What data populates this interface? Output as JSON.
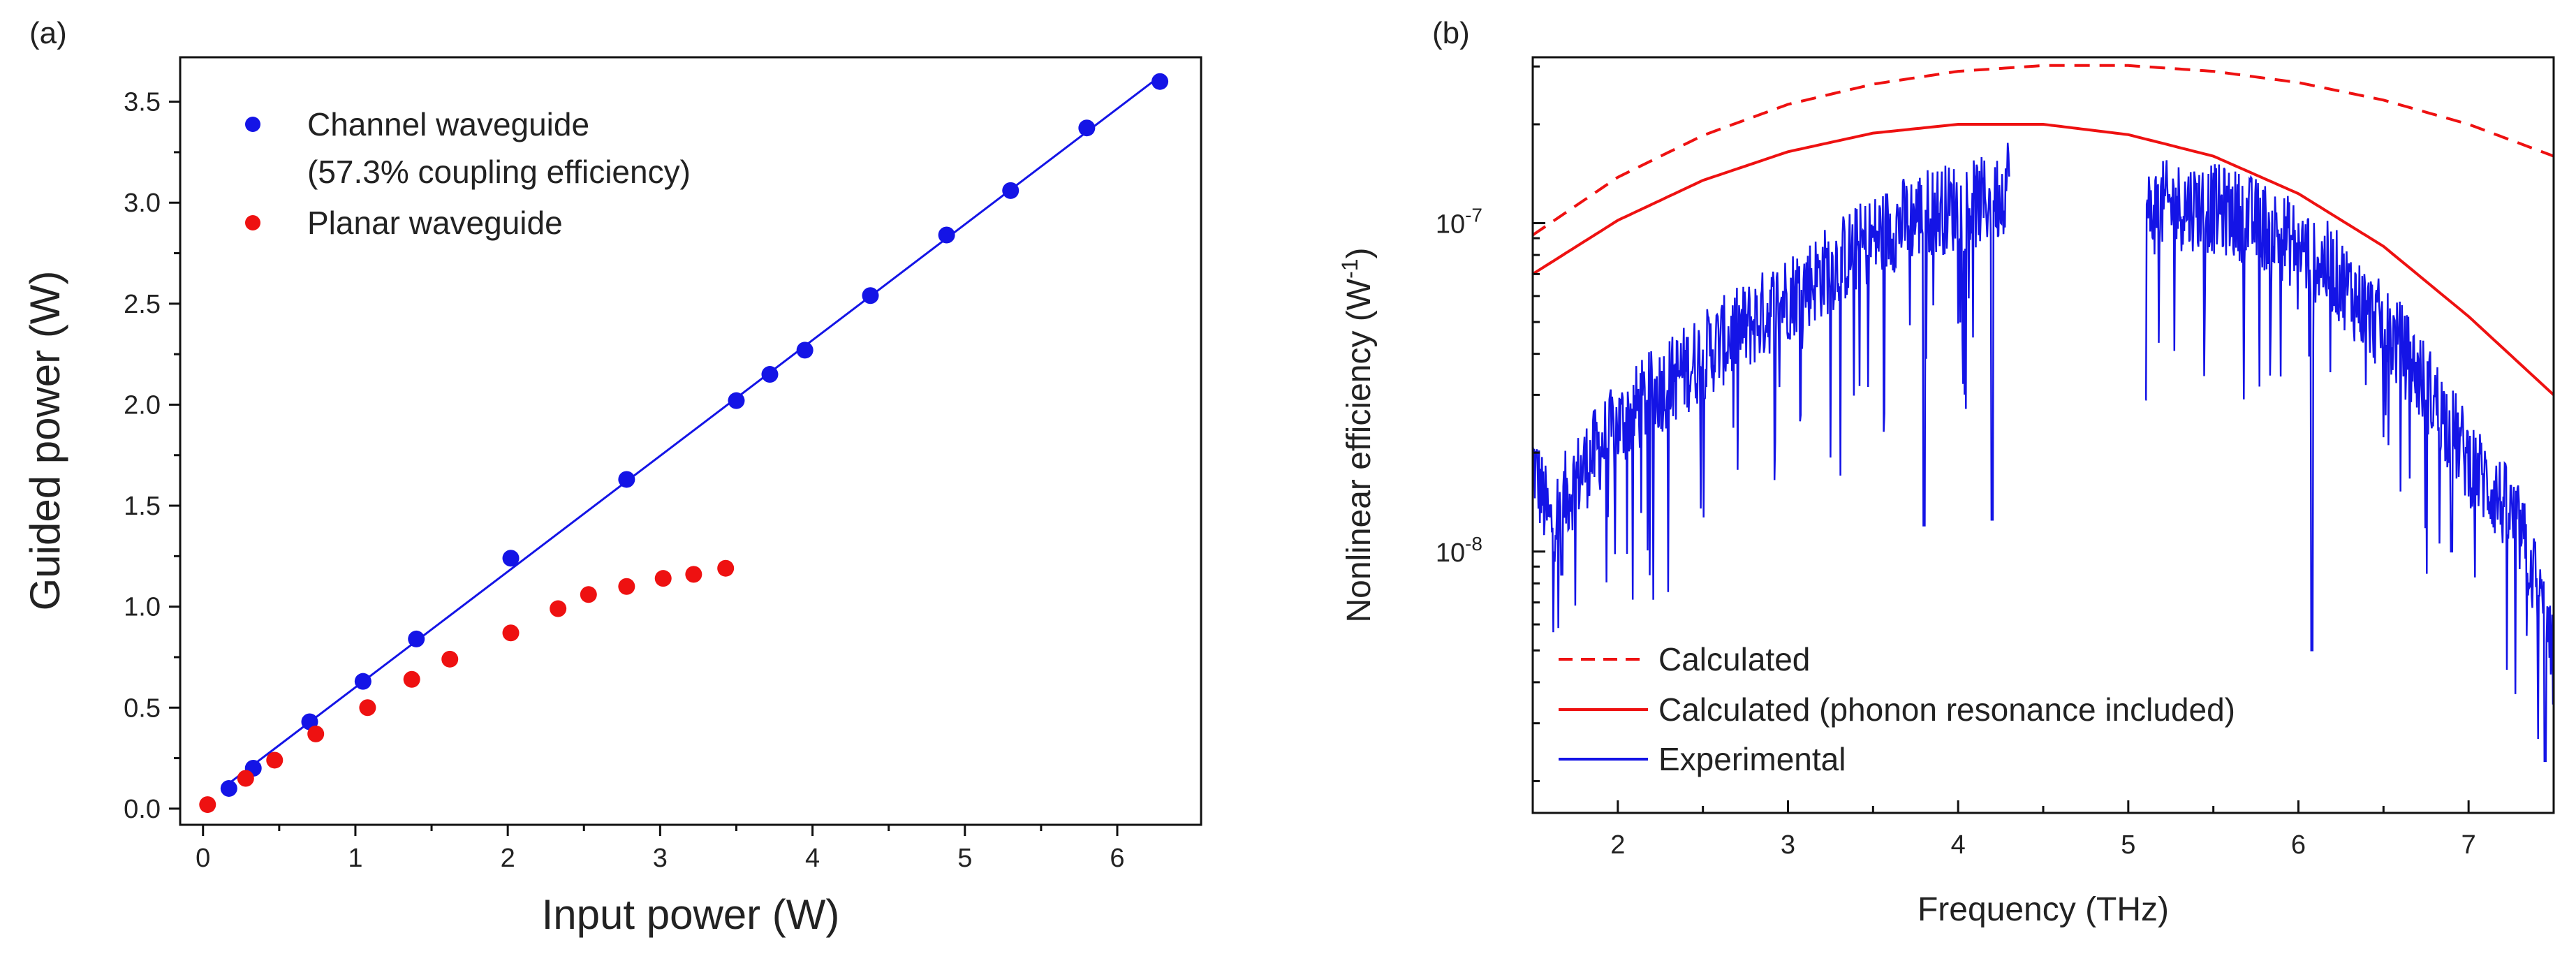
{
  "chart_data": [
    {
      "panel": "(a)",
      "type": "scatter",
      "xlabel": "Input power (W)",
      "ylabel": "Guided power (W)",
      "xlim": [
        -0.15,
        6.55
      ],
      "ylim": [
        -0.08,
        3.72
      ],
      "x_ticks": [
        0,
        1,
        2,
        3,
        4,
        5,
        6
      ],
      "y_ticks": [
        0.0,
        0.5,
        1.0,
        1.5,
        2.0,
        2.5,
        3.0,
        3.5
      ],
      "series": [
        {
          "name": "Channel waveguide",
          "name_line2": "(57.3% coupling efficiency)",
          "color": "#1414e6",
          "marker": "circle",
          "fit_line": true,
          "x": [
            0.17,
            0.33,
            0.7,
            1.05,
            1.4,
            2.02,
            2.78,
            3.5,
            3.72,
            3.95,
            4.38,
            4.88,
            5.3,
            5.8,
            6.28
          ],
          "y": [
            0.1,
            0.2,
            0.43,
            0.63,
            0.84,
            1.24,
            1.63,
            2.02,
            2.15,
            2.27,
            2.54,
            2.84,
            3.06,
            3.37,
            3.6
          ]
        },
        {
          "name": "Planar waveguide",
          "color": "#ee1111",
          "marker": "circle",
          "x": [
            0.03,
            0.28,
            0.47,
            0.74,
            1.08,
            1.37,
            1.62,
            2.02,
            2.33,
            2.53,
            2.78,
            3.02,
            3.22,
            3.43
          ],
          "y": [
            0.02,
            0.15,
            0.24,
            0.37,
            0.5,
            0.64,
            0.74,
            0.87,
            0.99,
            1.06,
            1.1,
            1.14,
            1.16,
            1.19
          ]
        }
      ]
    },
    {
      "panel": "(b)",
      "type": "line",
      "yscale": "log",
      "xlabel": "Frequency (THz)",
      "ylabel": "Nonlinear efficiency (W",
      "ylabel_sup": "-1",
      "ylabel_end": ")",
      "xlim": [
        1.5,
        7.5
      ],
      "ylim": [
        1.6e-09,
        3.2e-07
      ],
      "x_ticks": [
        2,
        3,
        4,
        5,
        6,
        7
      ],
      "y_tick_labels": [
        {
          "value": 1e-07,
          "base": "10",
          "exp": "-7"
        },
        {
          "value": 1e-08,
          "base": "10",
          "exp": "-8"
        }
      ],
      "series": [
        {
          "name": "Calculated",
          "color": "#ee1111",
          "style": "dashed",
          "x": [
            1.5,
            2.0,
            2.5,
            3.0,
            3.5,
            4.0,
            4.5,
            5.0,
            5.5,
            6.0,
            6.5,
            7.0,
            7.5
          ],
          "y": [
            9.2e-08,
            1.38e-07,
            1.85e-07,
            2.3e-07,
            2.65e-07,
            2.9e-07,
            3.02e-07,
            3.02e-07,
            2.9e-07,
            2.68e-07,
            2.37e-07,
            2e-07,
            1.6e-07
          ]
        },
        {
          "name": "Calculated (phonon resonance included)",
          "color": "#ee1111",
          "style": "solid",
          "x": [
            1.5,
            2.0,
            2.5,
            3.0,
            3.5,
            4.0,
            4.5,
            5.0,
            5.5,
            6.0,
            6.5,
            7.0,
            7.5
          ],
          "y": [
            7e-08,
            1.02e-07,
            1.35e-07,
            1.65e-07,
            1.88e-07,
            2e-07,
            2e-07,
            1.86e-07,
            1.6e-07,
            1.23e-07,
            8.5e-08,
            5.2e-08,
            3e-08
          ]
        },
        {
          "name": "Experimental",
          "color": "#1414e6",
          "style": "solid",
          "x": [
            1.5,
            1.6,
            1.7,
            1.8,
            1.9,
            2.0,
            2.2,
            2.4,
            2.6,
            2.8,
            3.0,
            3.2,
            3.4,
            3.6,
            3.7,
            3.8,
            3.9,
            4.0,
            4.1,
            4.15,
            4.2,
            4.25,
            4.3
          ],
          "y": [
            1.9e-08,
            1.2e-08,
            1.5e-08,
            1.8e-08,
            2.1e-08,
            2.4e-08,
            3e-08,
            3.6e-08,
            4.3e-08,
            5e-08,
            6e-08,
            7e-08,
            8.3e-08,
            9.6e-08,
            1.02e-07,
            1.08e-07,
            1.1e-07,
            1.12e-07,
            1.14e-07,
            1.16e-07,
            1.18e-07,
            1.22e-07,
            1.4e-07
          ],
          "x2": [
            5.1,
            5.2,
            5.4,
            5.6,
            5.8,
            6.0,
            6.2,
            6.4,
            6.6,
            6.8,
            7.0,
            7.2,
            7.3,
            7.4,
            7.5
          ],
          "y2": [
            1.05e-07,
            1.13e-07,
            1.13e-07,
            1.08e-07,
            9.8e-08,
            8.5e-08,
            7.2e-08,
            5.4e-08,
            4.2e-08,
            2.9e-08,
            1.9e-08,
            1.4e-08,
            1.15e-08,
            8e-09,
            4.5e-09
          ]
        }
      ]
    }
  ]
}
